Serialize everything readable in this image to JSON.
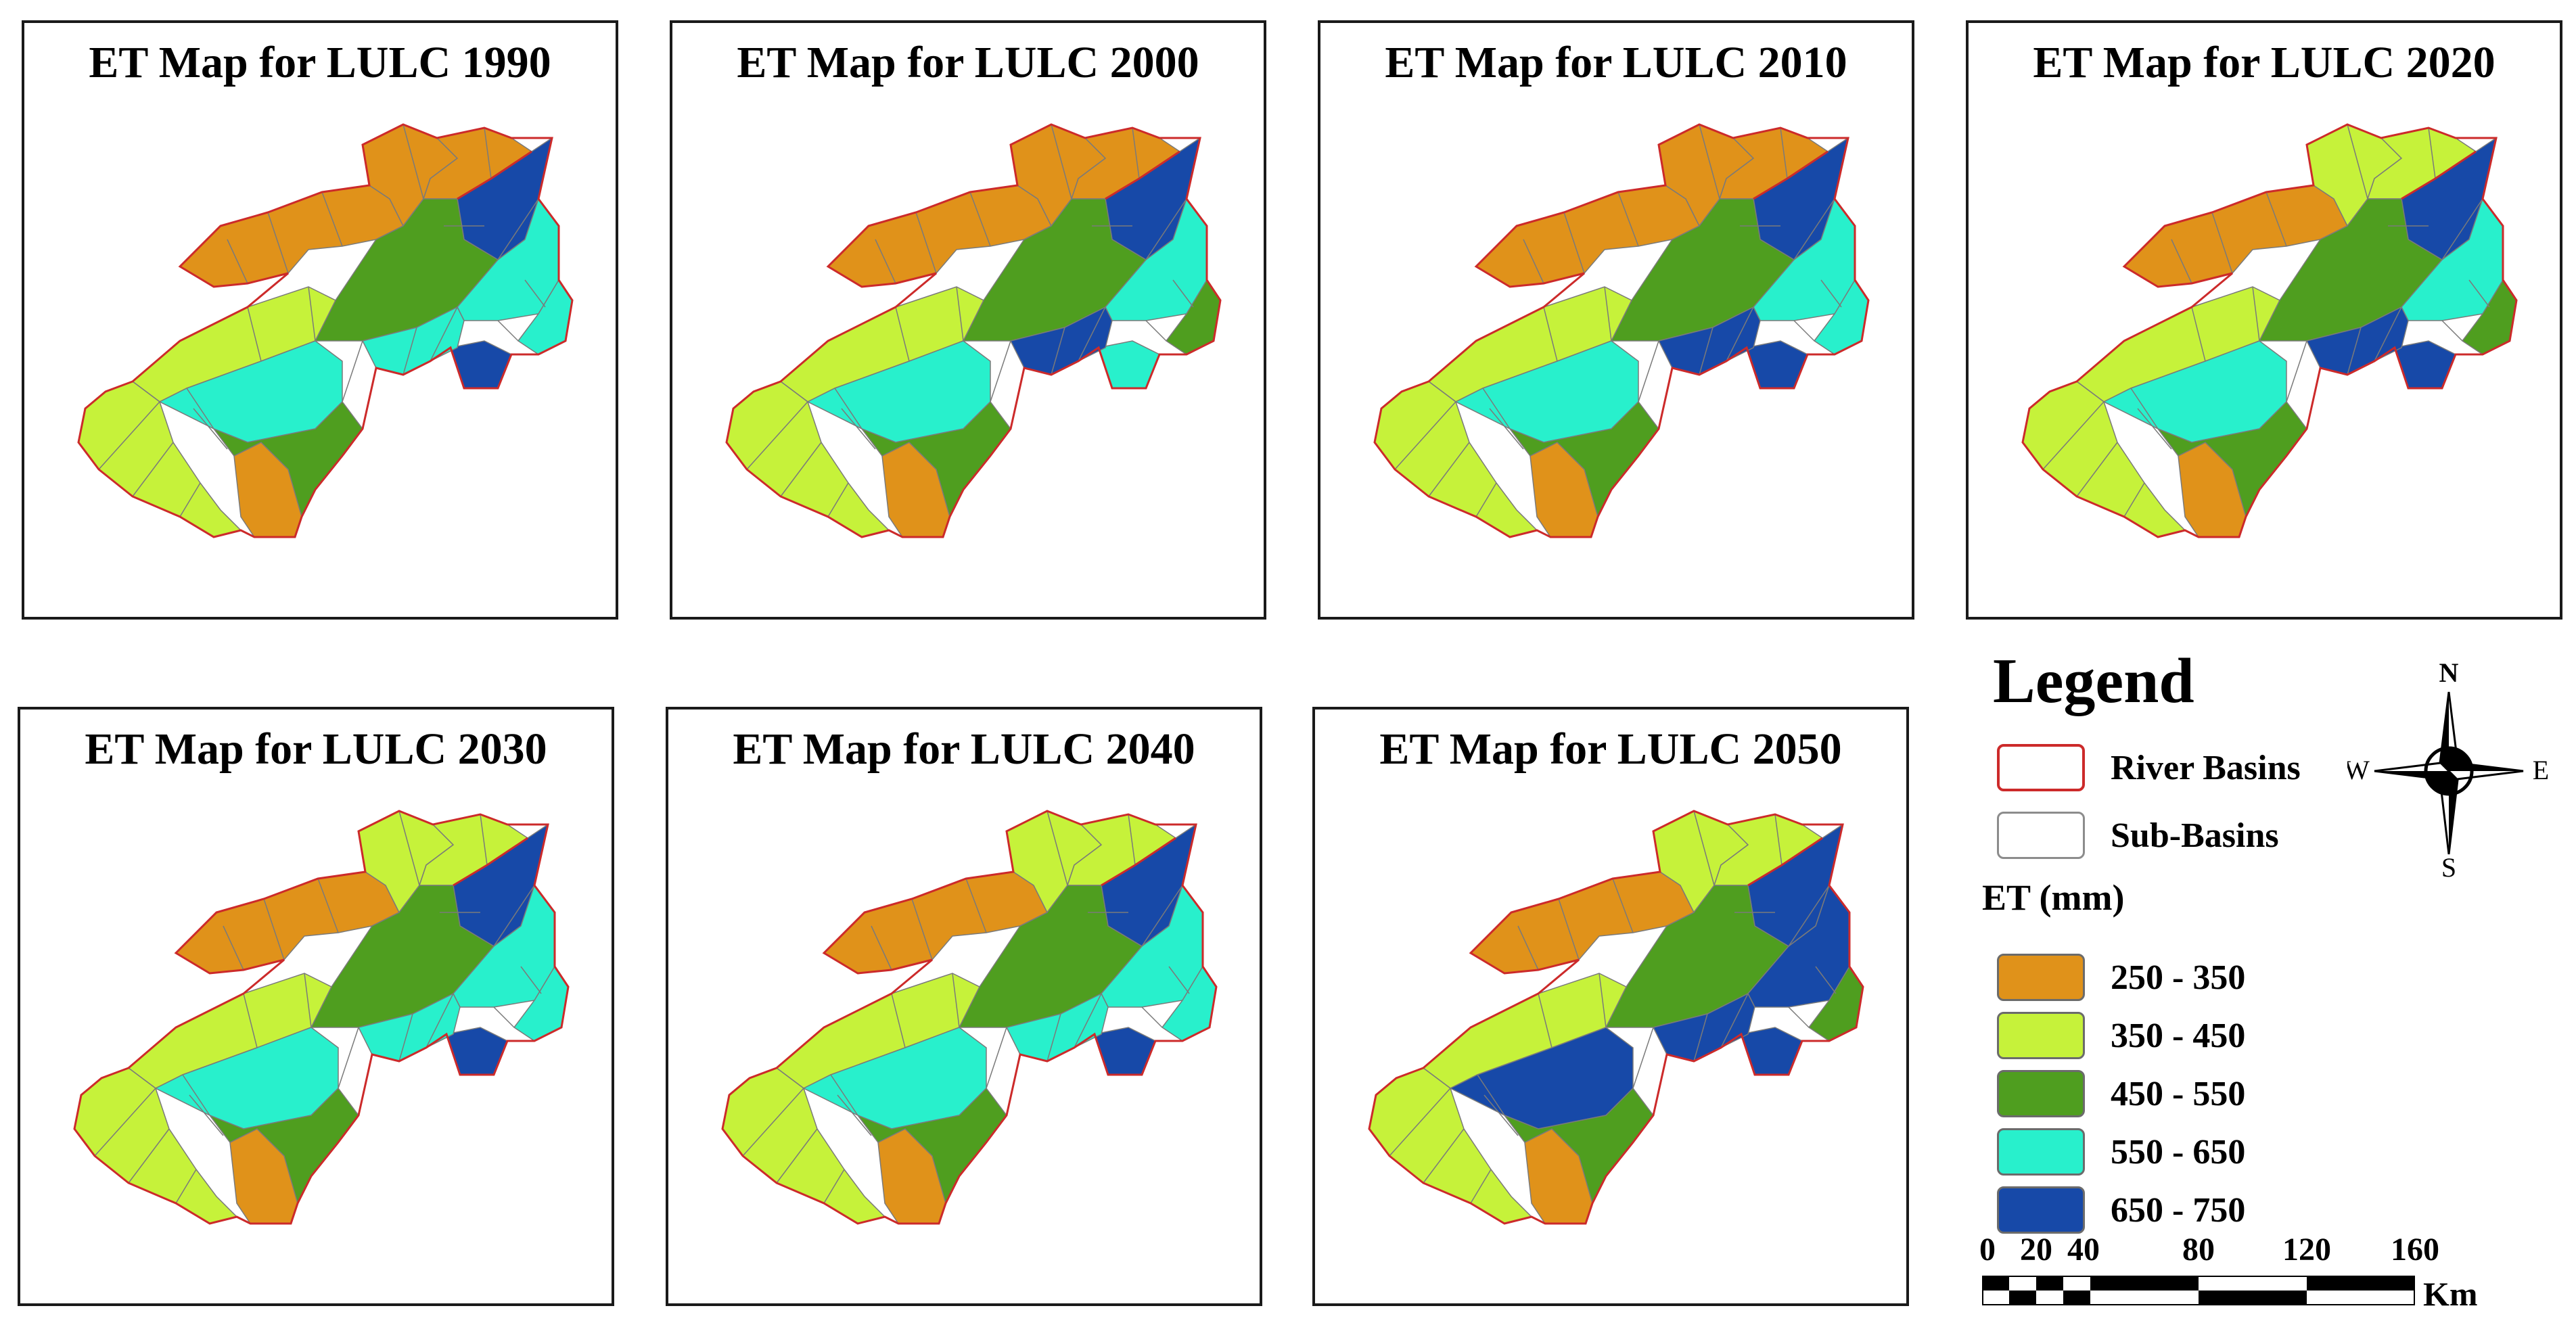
{
  "panels": [
    {
      "title": "ET Map for LULC 1990",
      "zones": {
        "NW": "250-350",
        "N1": "250-350",
        "N2": "250-350",
        "NE": "650-750",
        "C": "450-550",
        "W": "350-450",
        "SW": "350-450",
        "S": "250-350",
        "SC1": "550-650",
        "SC2": "450-550",
        "E1": "550-650",
        "E2": "550-650",
        "EB": "650-750",
        "CN": "550-650"
      }
    },
    {
      "title": "ET Map for LULC 2000",
      "zones": {
        "NW": "250-350",
        "N1": "250-350",
        "N2": "250-350",
        "NE": "650-750",
        "C": "450-550",
        "W": "350-450",
        "SW": "350-450",
        "S": "250-350",
        "SC1": "550-650",
        "SC2": "450-550",
        "E1": "550-650",
        "E2": "450-550",
        "EB": "550-650",
        "CN": "650-750"
      }
    },
    {
      "title": "ET Map for LULC 2010",
      "zones": {
        "NW": "250-350",
        "N1": "250-350",
        "N2": "250-350",
        "NE": "650-750",
        "C": "450-550",
        "W": "350-450",
        "SW": "350-450",
        "S": "250-350",
        "SC1": "550-650",
        "SC2": "450-550",
        "E1": "550-650",
        "E2": "550-650",
        "EB": "650-750",
        "CN": "650-750"
      }
    },
    {
      "title": "ET Map for LULC 2020",
      "zones": {
        "NW": "250-350",
        "N1": "350-450",
        "N2": "350-450",
        "NE": "650-750",
        "C": "450-550",
        "W": "350-450",
        "SW": "350-450",
        "S": "250-350",
        "SC1": "550-650",
        "SC2": "450-550",
        "E1": "550-650",
        "E2": "450-550",
        "EB": "650-750",
        "CN": "650-750"
      }
    },
    {
      "title": "ET Map for LULC 2030",
      "zones": {
        "NW": "250-350",
        "N1": "350-450",
        "N2": "350-450",
        "NE": "650-750",
        "C": "450-550",
        "W": "350-450",
        "SW": "350-450",
        "S": "250-350",
        "SC1": "550-650",
        "SC2": "450-550",
        "E1": "550-650",
        "E2": "550-650",
        "EB": "650-750",
        "CN": "550-650"
      }
    },
    {
      "title": "ET Map for LULC 2040",
      "zones": {
        "NW": "250-350",
        "N1": "350-450",
        "N2": "350-450",
        "NE": "650-750",
        "C": "450-550",
        "W": "350-450",
        "SW": "350-450",
        "S": "250-350",
        "SC1": "550-650",
        "SC2": "450-550",
        "E1": "550-650",
        "E2": "550-650",
        "EB": "650-750",
        "CN": "550-650"
      }
    },
    {
      "title": "ET Map for LULC 2050",
      "zones": {
        "NW": "250-350",
        "N1": "350-450",
        "N2": "350-450",
        "NE": "650-750",
        "C": "450-550",
        "W": "350-450",
        "SW": "350-450",
        "S": "250-350",
        "SC1": "650-750",
        "SC2": "450-550",
        "E1": "650-750",
        "E2": "450-550",
        "EB": "650-750",
        "CN": "650-750"
      }
    }
  ],
  "legend": {
    "title": "Legend",
    "river_basins_label": "River Basins",
    "sub_basins_label": "Sub-Basins",
    "et_heading": "ET (mm)",
    "classes": [
      {
        "id": "250-350",
        "label": "250 - 350",
        "color": "#e0921a"
      },
      {
        "id": "350-450",
        "label": "350 - 450",
        "color": "#c6f23a"
      },
      {
        "id": "450-550",
        "label": "450 - 550",
        "color": "#4f9e1f"
      },
      {
        "id": "550-650",
        "label": "550 - 650",
        "color": "#28f0cc"
      },
      {
        "id": "650-750",
        "label": "650 - 750",
        "color": "#1749a8"
      }
    ],
    "river_basin_color": "#cc2a2a",
    "sub_basin_color": "#7a7a7a"
  },
  "compass": {
    "N": "N",
    "S": "S",
    "E": "E",
    "W": "W"
  },
  "scale": {
    "ticks": [
      "0",
      "20",
      "40",
      "80",
      "120",
      "160"
    ],
    "unit": "Km"
  }
}
